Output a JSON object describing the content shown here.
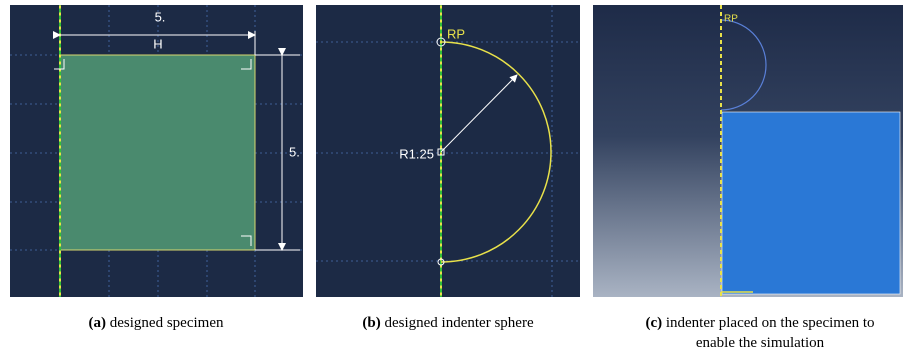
{
  "panels": [
    {
      "image": {
        "dimension_top": "5.",
        "dimension_top_label": "H",
        "dimension_right": "5."
      },
      "caption": {
        "label": "(a)",
        "lines": [
          "designed specimen"
        ]
      }
    },
    {
      "image": {
        "radius": "R1.25",
        "reference_point": "RP"
      },
      "caption": {
        "label": "(b)",
        "lines": [
          "designed indenter sphere"
        ]
      }
    },
    {
      "image": {
        "reference_point": "RP"
      },
      "caption": {
        "label": "(c)",
        "lines": [
          "indenter placed on the specimen to",
          "enable the simulation"
        ]
      }
    }
  ]
}
